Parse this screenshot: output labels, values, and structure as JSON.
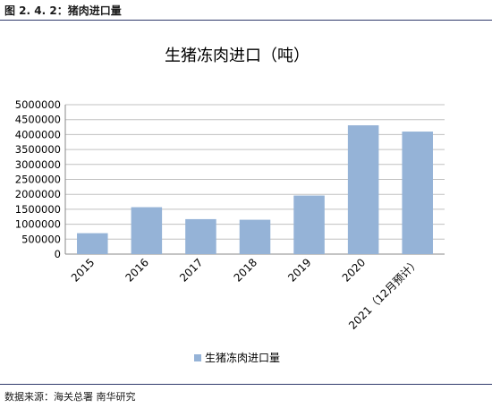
{
  "figure_label": "图 2. 4. 2：猪肉进口量",
  "source": "数据来源：海关总署 南华研究",
  "chart_data": {
    "type": "bar",
    "title": "生猪冻肉进口（吨）",
    "categories": [
      "2015",
      "2016",
      "2017",
      "2018",
      "2019",
      "2020",
      "2021（12月预计）"
    ],
    "series": [
      {
        "name": "生猪冻肉进口量",
        "values": [
          700000,
          1570000,
          1170000,
          1150000,
          1960000,
          4310000,
          4100000
        ]
      }
    ],
    "ylim": [
      0,
      5000000
    ],
    "yticks": [
      "0",
      "500000",
      "1000000",
      "1500000",
      "2000000",
      "2500000",
      "3000000",
      "3500000",
      "4000000",
      "4500000",
      "5000000"
    ],
    "grid": true,
    "legend_position": "bottom",
    "colors": {
      "bar": "#95b3d7",
      "grid": "#c0c0c0",
      "axis": "#888888",
      "rule": "#2f3a6b"
    }
  }
}
